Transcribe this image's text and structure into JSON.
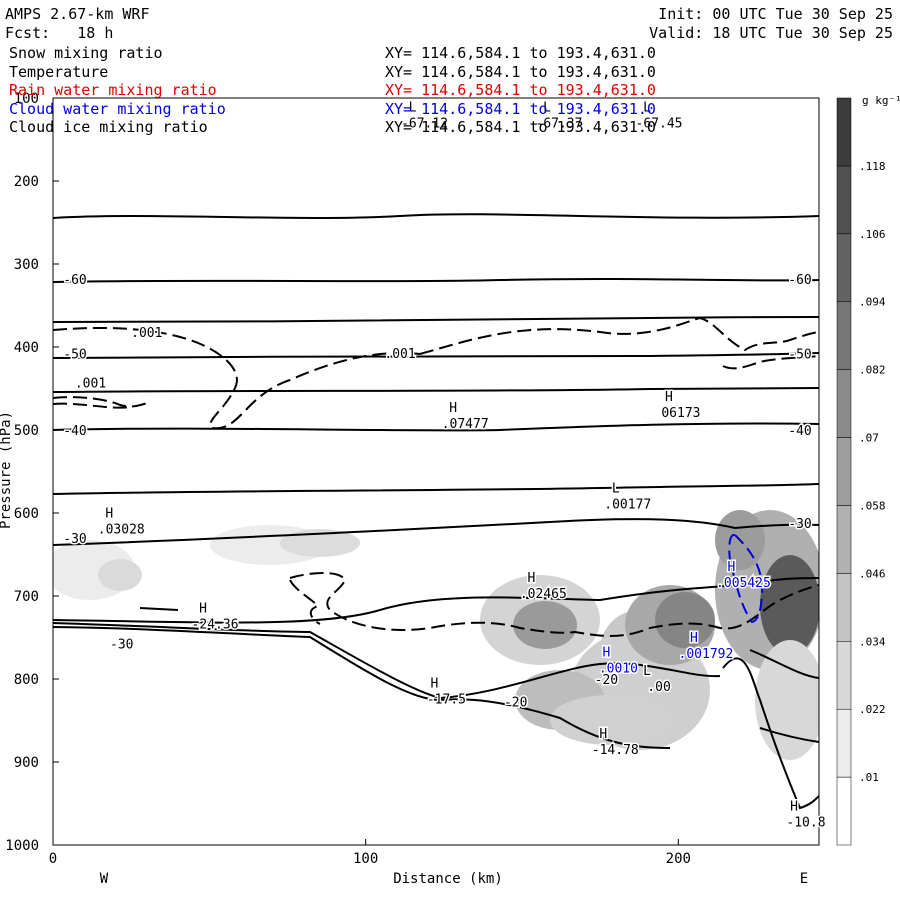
{
  "header": {
    "model": "AMPS 2.67-km WRF",
    "forecast": "Fcst:   18 h",
    "init": "Init: 00 UTC Tue 30 Sep 25",
    "valid": "Valid: 18 UTC Tue 30 Sep 25"
  },
  "fields": [
    {
      "name": "Snow mixing ratio",
      "xy": "XY= 114.6,584.1 to 193.4,631.0",
      "color": "#000000"
    },
    {
      "name": "Temperature",
      "xy": "XY= 114.6,584.1 to 193.4,631.0",
      "color": "#000000"
    },
    {
      "name": "Rain water mixing ratio",
      "xy": "XY= 114.6,584.1 to 193.4,631.0",
      "color": "#e00000"
    },
    {
      "name": "Cloud water mixing ratio",
      "xy": "XY= 114.6,584.1 to 193.4,631.0",
      "color": "#0000e0"
    },
    {
      "name": "Cloud ice mixing ratio",
      "xy": "XY= 114.6,584.1 to 193.4,631.0",
      "color": "#000000"
    }
  ],
  "chart_data": {
    "type": "cross-section contour",
    "xlabel": "Distance (km)",
    "ylabel": "Pressure (hPa)",
    "xlim": [
      0,
      245
    ],
    "ylim": [
      100,
      1000
    ],
    "x_ticks": [
      0,
      100,
      200
    ],
    "y_ticks": [
      100,
      200,
      300,
      400,
      500,
      600,
      700,
      800,
      900,
      1000
    ],
    "x_endpoints": {
      "left": "W",
      "right": "E"
    },
    "colorbar": {
      "units": "g kg⁻¹",
      "levels": [
        ".01",
        ".022",
        ".034",
        ".046",
        ".058",
        ".07",
        ".082",
        ".094",
        ".106",
        ".118"
      ]
    },
    "temperature_isotherms": [
      {
        "label": "-60",
        "p": 318
      },
      {
        "label": "-50",
        "p": 408
      },
      {
        "label": "-40",
        "p": 500
      },
      {
        "label": "-30",
        "p": 630
      },
      {
        "label": "-20",
        "p": 790
      }
    ],
    "snow_contour_labels": [
      {
        "text": ".001",
        "x": 30,
        "p": 382
      },
      {
        "text": ".001",
        "x": 12,
        "p": 443
      },
      {
        "text": ".001",
        "x": 111,
        "p": 407
      }
    ],
    "extrema": [
      {
        "type": "L",
        "value": "-67.12",
        "x": 115,
        "p": 133,
        "color": "black"
      },
      {
        "type": "L",
        "value": "-67.37",
        "x": 158,
        "p": 133,
        "color": "black"
      },
      {
        "type": "L",
        "value": "-67.45",
        "x": 190,
        "p": 133,
        "color": "black"
      },
      {
        "type": "H",
        "value": ".07477",
        "x": 128,
        "p": 495,
        "color": "black"
      },
      {
        "type": "H",
        "value": "06173",
        "x": 197,
        "p": 482,
        "color": "black"
      },
      {
        "type": "L",
        "value": ".00177",
        "x": 180,
        "p": 592,
        "color": "black"
      },
      {
        "type": "H",
        "value": ".03028",
        "x": 18,
        "p": 622,
        "color": "black"
      },
      {
        "type": "H",
        "value": ".02465",
        "x": 153,
        "p": 700,
        "color": "black"
      },
      {
        "type": "H",
        "value": "-24.36",
        "x": 48,
        "p": 737,
        "color": "black"
      },
      {
        "type": "L",
        "value": ".00",
        "x": 190,
        "p": 812,
        "color": "black"
      },
      {
        "type": "H",
        "value": "-17.5",
        "x": 122,
        "p": 827,
        "color": "black"
      },
      {
        "type": "H",
        "value": "-14.78",
        "x": 176,
        "p": 888,
        "color": "black"
      },
      {
        "type": "H",
        "value": "-10.8",
        "x": 237,
        "p": 975,
        "color": "black"
      },
      {
        "type": "H",
        "value": ".005425",
        "x": 217,
        "p": 687,
        "color": "blue"
      },
      {
        "type": "H",
        "value": ".001792",
        "x": 205,
        "p": 772,
        "color": "blue"
      },
      {
        "type": "H",
        "value": ".0010",
        "x": 177,
        "p": 790,
        "color": "blue"
      }
    ],
    "extra_labels": [
      {
        "text": "-30",
        "x": 22,
        "p": 757
      },
      {
        "text": "-20",
        "x": 148,
        "p": 827
      },
      {
        "text": "-20",
        "x": 177,
        "p": 800
      }
    ]
  }
}
